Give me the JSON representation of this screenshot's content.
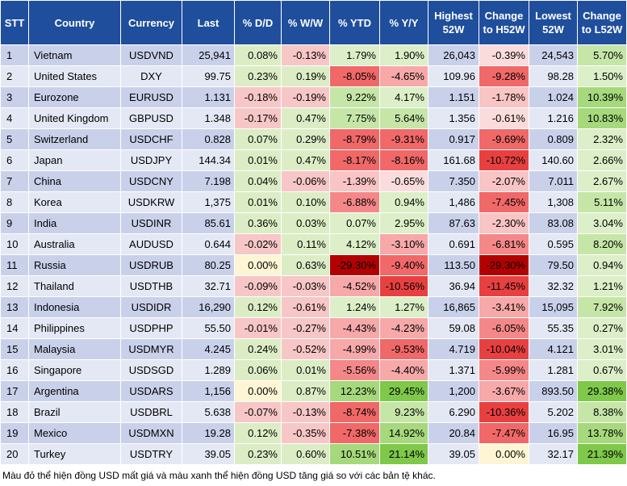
{
  "headers": [
    "STT",
    "Country",
    "Currency",
    "Last",
    "% D/D",
    "% W/W",
    "% YTD",
    "% Y/Y",
    "Highest 52W",
    "Change to H52W",
    "Lowest 52W",
    "Change to L52W"
  ],
  "rows": [
    {
      "stt": "1",
      "country": "Vietnam",
      "currency": "USDVND",
      "last": "25,941",
      "dd": "0.08%",
      "ww": "-0.13%",
      "ytd": "1.79%",
      "yy": "1.90%",
      "high": "26,043",
      "ch": "-0.39%",
      "low": "24,543",
      "cl": "5.70%"
    },
    {
      "stt": "2",
      "country": "United States",
      "currency": "DXY",
      "last": "99.75",
      "dd": "0.23%",
      "ww": "0.19%",
      "ytd": "-8.05%",
      "yy": "-4.65%",
      "high": "109.96",
      "ch": "-9.28%",
      "low": "98.28",
      "cl": "1.50%"
    },
    {
      "stt": "3",
      "country": "Eurozone",
      "currency": "EURUSD",
      "last": "1.131",
      "dd": "-0.18%",
      "ww": "-0.19%",
      "ytd": "9.22%",
      "yy": "4.17%",
      "high": "1.151",
      "ch": "-1.78%",
      "low": "1.024",
      "cl": "10.39%"
    },
    {
      "stt": "4",
      "country": "United Kingdom",
      "currency": "GBPUSD",
      "last": "1.348",
      "dd": "-0.17%",
      "ww": "0.47%",
      "ytd": "7.75%",
      "yy": "5.64%",
      "high": "1.356",
      "ch": "-0.61%",
      "low": "1.216",
      "cl": "10.83%"
    },
    {
      "stt": "5",
      "country": "Switzerland",
      "currency": "USDCHF",
      "last": "0.828",
      "dd": "0.07%",
      "ww": "0.29%",
      "ytd": "-8.79%",
      "yy": "-9.31%",
      "high": "0.917",
      "ch": "-9.69%",
      "low": "0.809",
      "cl": "2.32%"
    },
    {
      "stt": "6",
      "country": "Japan",
      "currency": "USDJPY",
      "last": "144.34",
      "dd": "0.01%",
      "ww": "0.47%",
      "ytd": "-8.17%",
      "yy": "-8.16%",
      "high": "161.68",
      "ch": "-10.72%",
      "low": "140.60",
      "cl": "2.66%"
    },
    {
      "stt": "7",
      "country": "China",
      "currency": "USDCNY",
      "last": "7.198",
      "dd": "0.04%",
      "ww": "-0.06%",
      "ytd": "-1.39%",
      "yy": "-0.65%",
      "high": "7.350",
      "ch": "-2.07%",
      "low": "7.011",
      "cl": "2.67%"
    },
    {
      "stt": "8",
      "country": "Korea",
      "currency": "USDKRW",
      "last": "1,375",
      "dd": "0.01%",
      "ww": "0.10%",
      "ytd": "-6.88%",
      "yy": "0.94%",
      "high": "1,486",
      "ch": "-7.45%",
      "low": "1,308",
      "cl": "5.11%"
    },
    {
      "stt": "9",
      "country": "India",
      "currency": "USDINR",
      "last": "85.61",
      "dd": "0.36%",
      "ww": "0.03%",
      "ytd": "0.07%",
      "yy": "2.95%",
      "high": "87.63",
      "ch": "-2.30%",
      "low": "83.08",
      "cl": "3.04%"
    },
    {
      "stt": "10",
      "country": "Australia",
      "currency": "AUDUSD",
      "last": "0.644",
      "dd": "-0.02%",
      "ww": "0.11%",
      "ytd": "4.12%",
      "yy": "-3.10%",
      "high": "0.691",
      "ch": "-6.81%",
      "low": "0.595",
      "cl": "8.20%"
    },
    {
      "stt": "11",
      "country": "Russia",
      "currency": "USDRUB",
      "last": "80.25",
      "dd": "0.00%",
      "ww": "0.63%",
      "ytd": "-29.30%",
      "yy": "-9.40%",
      "high": "113.50",
      "ch": "-29.30%",
      "low": "79.50",
      "cl": "0.94%"
    },
    {
      "stt": "12",
      "country": "Thailand",
      "currency": "USDTHB",
      "last": "32.71",
      "dd": "-0.09%",
      "ww": "-0.03%",
      "ytd": "-4.52%",
      "yy": "-10.56%",
      "high": "36.94",
      "ch": "-11.45%",
      "low": "32.32",
      "cl": "1.21%"
    },
    {
      "stt": "13",
      "country": "Indonesia",
      "currency": "USDIDR",
      "last": "16,290",
      "dd": "0.12%",
      "ww": "-0.61%",
      "ytd": "1.24%",
      "yy": "1.27%",
      "high": "16,865",
      "ch": "-3.41%",
      "low": "15,095",
      "cl": "7.92%"
    },
    {
      "stt": "14",
      "country": "Philippines",
      "currency": "USDPHP",
      "last": "55.50",
      "dd": "-0.01%",
      "ww": "-0.27%",
      "ytd": "-4.43%",
      "yy": "-4.23%",
      "high": "59.08",
      "ch": "-6.05%",
      "low": "55.35",
      "cl": "0.27%"
    },
    {
      "stt": "15",
      "country": "Malaysia",
      "currency": "USDMYR",
      "last": "4.245",
      "dd": "0.24%",
      "ww": "-0.52%",
      "ytd": "-4.99%",
      "yy": "-9.53%",
      "high": "4.719",
      "ch": "-10.04%",
      "low": "4.121",
      "cl": "3.01%"
    },
    {
      "stt": "16",
      "country": "Singapore",
      "currency": "USDSGD",
      "last": "1.289",
      "dd": "0.06%",
      "ww": "0.01%",
      "ytd": "-5.56%",
      "yy": "-4.40%",
      "high": "1.371",
      "ch": "-5.99%",
      "low": "1.281",
      "cl": "0.67%"
    },
    {
      "stt": "17",
      "country": "Argentina",
      "currency": "USDARS",
      "last": "1,156",
      "dd": "0.00%",
      "ww": "0.87%",
      "ytd": "12.23%",
      "yy": "29.45%",
      "high": "1,200",
      "ch": "-3.67%",
      "low": "893.50",
      "cl": "29.38%"
    },
    {
      "stt": "18",
      "country": "Brazil",
      "currency": "USDBRL",
      "last": "5.638",
      "dd": "-0.07%",
      "ww": "-0.13%",
      "ytd": "-8.74%",
      "yy": "9.23%",
      "high": "6.290",
      "ch": "-10.36%",
      "low": "5.202",
      "cl": "8.38%"
    },
    {
      "stt": "19",
      "country": "Mexico",
      "currency": "USDMXN",
      "last": "19.28",
      "dd": "0.12%",
      "ww": "-0.35%",
      "ytd": "-7.38%",
      "yy": "14.92%",
      "high": "20.84",
      "ch": "-7.47%",
      "low": "16.95",
      "cl": "13.78%"
    },
    {
      "stt": "20",
      "country": "Turkey",
      "currency": "USDTRY",
      "last": "39.05",
      "dd": "0.23%",
      "ww": "0.60%",
      "ytd": "10.51%",
      "yy": "21.14%",
      "high": "39.05",
      "ch": "0.00%",
      "low": "32.17",
      "cl": "21.39%"
    }
  ],
  "footnote": "Màu đỏ thể hiện đồng USD mất giá và màu xanh thể hiện đồng USD tăng giá so với các bản tệ khác."
}
